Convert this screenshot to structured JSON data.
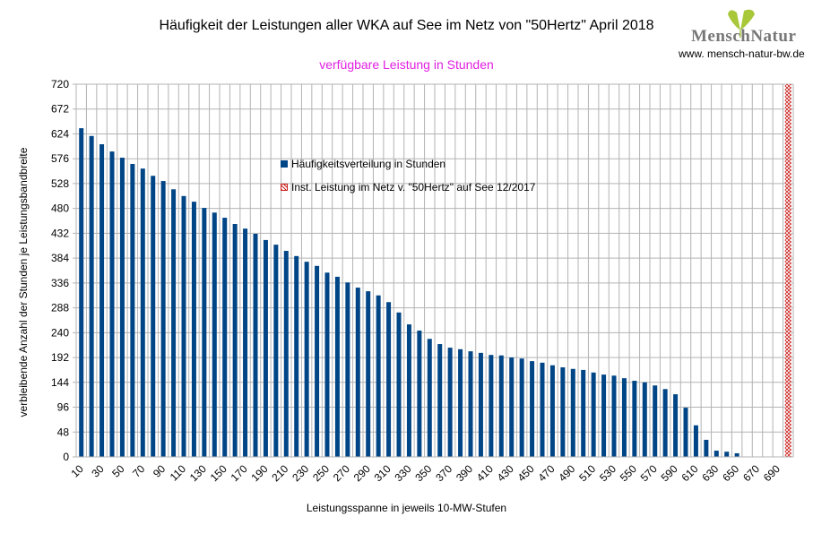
{
  "logo": {
    "text": "MenschNatur",
    "url": "www. mensch-natur-bw.de"
  },
  "chart_data": {
    "type": "bar",
    "title": "Häufigkeit der Leistungen aller WKA auf See im Netz von \"50Hertz\" April 2018",
    "subtitle": "verfügbare Leistung in Stunden",
    "xlabel": "Leistungsspanne in jeweils 10-MW-Stufen",
    "ylabel": "verbleibende Anzahl der Stunden je Leistungsbandbreite",
    "ylim": [
      0,
      720
    ],
    "yticks": [
      0,
      48,
      96,
      144,
      192,
      240,
      288,
      336,
      384,
      432,
      480,
      528,
      576,
      624,
      672,
      720
    ],
    "grid": true,
    "legend_position": "inside-top-center",
    "categories": [
      10,
      20,
      30,
      40,
      50,
      60,
      70,
      80,
      90,
      100,
      110,
      120,
      130,
      140,
      150,
      160,
      170,
      180,
      190,
      200,
      210,
      220,
      230,
      240,
      250,
      260,
      270,
      280,
      290,
      300,
      310,
      320,
      330,
      340,
      350,
      360,
      370,
      380,
      390,
      400,
      410,
      420,
      430,
      440,
      450,
      460,
      470,
      480,
      490,
      500,
      510,
      520,
      530,
      540,
      550,
      560,
      570,
      580,
      590,
      600,
      610,
      620,
      630,
      640,
      650,
      660,
      670,
      680,
      690,
      700
    ],
    "xtick_labels": [
      10,
      30,
      50,
      70,
      90,
      110,
      130,
      150,
      170,
      190,
      210,
      230,
      250,
      270,
      290,
      310,
      330,
      350,
      370,
      390,
      410,
      430,
      450,
      470,
      490,
      510,
      530,
      550,
      570,
      590,
      610,
      630,
      650,
      670,
      690
    ],
    "series": [
      {
        "name": "Häufigkeitsverteilung in Stunden",
        "color": "#004586",
        "values": [
          635,
          620,
          604,
          590,
          578,
          566,
          557,
          543,
          533,
          517,
          504,
          493,
          481,
          472,
          462,
          450,
          441,
          431,
          419,
          410,
          398,
          388,
          377,
          369,
          356,
          348,
          337,
          327,
          320,
          312,
          299,
          279,
          256,
          244,
          228,
          218,
          211,
          208,
          204,
          201,
          197,
          196,
          192,
          190,
          185,
          182,
          177,
          173,
          170,
          168,
          163,
          159,
          157,
          152,
          147,
          144,
          138,
          131,
          121,
          95,
          61,
          33,
          12,
          10,
          7,
          0,
          0,
          0,
          0,
          0
        ]
      },
      {
        "name": "Inst. Leistung im Netz v. \"50Hertz\" auf See 12/2017",
        "color": "#c9211e",
        "pattern": "hatched-cross",
        "values": [
          0,
          0,
          0,
          0,
          0,
          0,
          0,
          0,
          0,
          0,
          0,
          0,
          0,
          0,
          0,
          0,
          0,
          0,
          0,
          0,
          0,
          0,
          0,
          0,
          0,
          0,
          0,
          0,
          0,
          0,
          0,
          0,
          0,
          0,
          0,
          0,
          0,
          0,
          0,
          0,
          0,
          0,
          0,
          0,
          0,
          0,
          0,
          0,
          0,
          0,
          0,
          0,
          0,
          0,
          0,
          0,
          0,
          0,
          0,
          0,
          0,
          0,
          0,
          0,
          0,
          0,
          0,
          0,
          0,
          720
        ]
      }
    ]
  }
}
